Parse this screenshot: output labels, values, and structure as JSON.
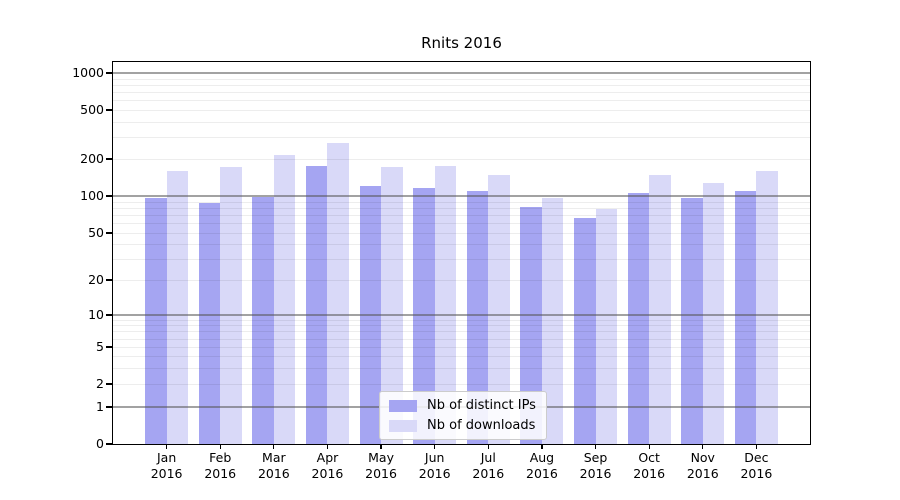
{
  "title": "Rnits 2016",
  "colors": {
    "series_ips": "#a5a5f2",
    "series_downloads": "#d9d9f8",
    "axis": "#000000",
    "grid_major": "#999999",
    "grid_minor": "#ededed",
    "legend_border": "#cccccc"
  },
  "y_axis": {
    "tick_labels": [
      "1000",
      "500",
      "200",
      "100",
      "50",
      "20",
      "10",
      "5",
      "2",
      "1",
      "0"
    ],
    "tick_values": [
      1000,
      500,
      200,
      100,
      50,
      20,
      10,
      5,
      2,
      1,
      0
    ],
    "major_grid_values": [
      1,
      10,
      100,
      1000
    ],
    "minor_grid_values": [
      2,
      3,
      4,
      5,
      6,
      7,
      8,
      9,
      20,
      30,
      40,
      50,
      60,
      70,
      80,
      90,
      200,
      300,
      400,
      500,
      600,
      700,
      800,
      900
    ]
  },
  "x_axis": {
    "months": [
      "Jan",
      "Feb",
      "Mar",
      "Apr",
      "May",
      "Jun",
      "Jul",
      "Aug",
      "Sep",
      "Oct",
      "Nov",
      "Dec"
    ],
    "year": "2016"
  },
  "chart_data": {
    "type": "bar",
    "title": "Rnits 2016",
    "categories": [
      "Jan 2016",
      "Feb 2016",
      "Mar 2016",
      "Apr 2016",
      "May 2016",
      "Jun 2016",
      "Jul 2016",
      "Aug 2016",
      "Sep 2016",
      "Oct 2016",
      "Nov 2016",
      "Dec 2016"
    ],
    "series": [
      {
        "name": "Nb of distinct IPs",
        "color": "#a5a5f2",
        "values": [
          97,
          87,
          98,
          175,
          121,
          117,
          110,
          81,
          66,
          106,
          96,
          110
        ]
      },
      {
        "name": "Nb of downloads",
        "color": "#d9d9f8",
        "values": [
          160,
          172,
          215,
          268,
          172,
          175,
          147,
          96,
          79,
          148,
          128,
          159
        ]
      }
    ],
    "yscale": "symlog",
    "ylim": [
      0,
      1000
    ],
    "yticks": [
      0,
      1,
      2,
      5,
      10,
      20,
      50,
      100,
      200,
      500,
      1000
    ],
    "grid": true,
    "grid_above_bars": true,
    "legend_position": "lower center"
  }
}
